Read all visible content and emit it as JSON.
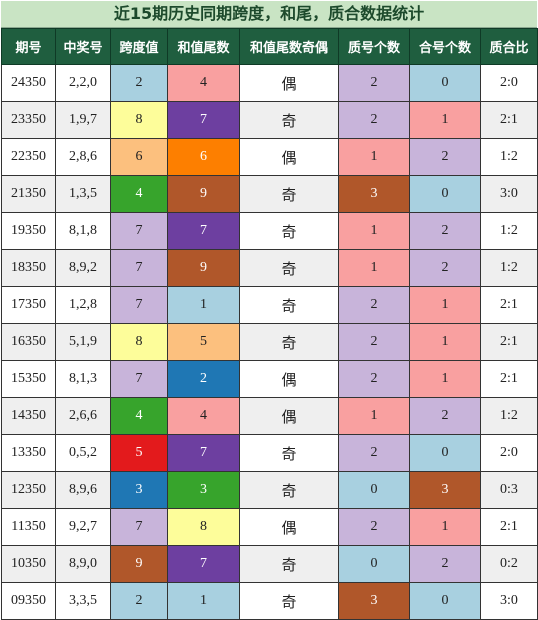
{
  "title": "近15期历史同期跨度，和尾，质合数据统计",
  "headers": [
    "期号",
    "中奖号",
    "跨度值",
    "和值尾数",
    "和值尾数奇偶",
    "质号个数",
    "合号个数",
    "质合比"
  ],
  "colors": {
    "light_blue": "#a8d0e0",
    "pink": "#f9a0a0",
    "lavender": "#c8b4da",
    "yellow": "#fdfd9a",
    "peach": "#fcc07e",
    "orange": "#fd7f00",
    "green": "#37a42c",
    "purple": "#6d3fa0",
    "brown": "#b0572a",
    "blue": "#1f77b4",
    "red": "#e31a1c"
  },
  "rows": [
    {
      "period": "24350",
      "numbers": "2,2,0",
      "span": "2",
      "span_color": "light_blue",
      "tail": "4",
      "tail_color": "pink",
      "parity": "偶",
      "prime": "2",
      "prime_color": "lavender",
      "composite": "0",
      "composite_color": "light_blue",
      "ratio": "2:0"
    },
    {
      "period": "23350",
      "numbers": "1,9,7",
      "span": "8",
      "span_color": "yellow",
      "tail": "7",
      "tail_color": "purple",
      "parity": "奇",
      "prime": "2",
      "prime_color": "lavender",
      "composite": "1",
      "composite_color": "pink",
      "ratio": "2:1"
    },
    {
      "period": "22350",
      "numbers": "2,8,6",
      "span": "6",
      "span_color": "peach",
      "tail": "6",
      "tail_color": "orange",
      "parity": "偶",
      "prime": "1",
      "prime_color": "pink",
      "composite": "2",
      "composite_color": "lavender",
      "ratio": "1:2"
    },
    {
      "period": "21350",
      "numbers": "1,3,5",
      "span": "4",
      "span_color": "green",
      "tail": "9",
      "tail_color": "brown",
      "parity": "奇",
      "prime": "3",
      "prime_color": "brown",
      "composite": "0",
      "composite_color": "light_blue",
      "ratio": "3:0"
    },
    {
      "period": "19350",
      "numbers": "8,1,8",
      "span": "7",
      "span_color": "lavender",
      "tail": "7",
      "tail_color": "purple",
      "parity": "奇",
      "prime": "1",
      "prime_color": "pink",
      "composite": "2",
      "composite_color": "lavender",
      "ratio": "1:2"
    },
    {
      "period": "18350",
      "numbers": "8,9,2",
      "span": "7",
      "span_color": "lavender",
      "tail": "9",
      "tail_color": "brown",
      "parity": "奇",
      "prime": "1",
      "prime_color": "pink",
      "composite": "2",
      "composite_color": "lavender",
      "ratio": "1:2"
    },
    {
      "period": "17350",
      "numbers": "1,2,8",
      "span": "7",
      "span_color": "lavender",
      "tail": "1",
      "tail_color": "light_blue",
      "parity": "奇",
      "prime": "2",
      "prime_color": "lavender",
      "composite": "1",
      "composite_color": "pink",
      "ratio": "2:1"
    },
    {
      "period": "16350",
      "numbers": "5,1,9",
      "span": "8",
      "span_color": "yellow",
      "tail": "5",
      "tail_color": "peach",
      "parity": "奇",
      "prime": "2",
      "prime_color": "lavender",
      "composite": "1",
      "composite_color": "pink",
      "ratio": "2:1"
    },
    {
      "period": "15350",
      "numbers": "8,1,3",
      "span": "7",
      "span_color": "lavender",
      "tail": "2",
      "tail_color": "blue",
      "parity": "偶",
      "prime": "2",
      "prime_color": "lavender",
      "composite": "1",
      "composite_color": "pink",
      "ratio": "2:1"
    },
    {
      "period": "14350",
      "numbers": "2,6,6",
      "span": "4",
      "span_color": "green",
      "tail": "4",
      "tail_color": "pink",
      "parity": "偶",
      "prime": "1",
      "prime_color": "pink",
      "composite": "2",
      "composite_color": "lavender",
      "ratio": "1:2"
    },
    {
      "period": "13350",
      "numbers": "0,5,2",
      "span": "5",
      "span_color": "red",
      "tail": "7",
      "tail_color": "purple",
      "parity": "奇",
      "prime": "2",
      "prime_color": "lavender",
      "composite": "0",
      "composite_color": "light_blue",
      "ratio": "2:0"
    },
    {
      "period": "12350",
      "numbers": "8,9,6",
      "span": "3",
      "span_color": "blue",
      "tail": "3",
      "tail_color": "green",
      "parity": "奇",
      "prime": "0",
      "prime_color": "light_blue",
      "composite": "3",
      "composite_color": "brown",
      "ratio": "0:3"
    },
    {
      "period": "11350",
      "numbers": "9,2,7",
      "span": "7",
      "span_color": "lavender",
      "tail": "8",
      "tail_color": "yellow",
      "parity": "偶",
      "prime": "2",
      "prime_color": "lavender",
      "composite": "1",
      "composite_color": "pink",
      "ratio": "2:1"
    },
    {
      "period": "10350",
      "numbers": "8,9,0",
      "span": "9",
      "span_color": "brown",
      "tail": "7",
      "tail_color": "purple",
      "parity": "奇",
      "prime": "0",
      "prime_color": "light_blue",
      "composite": "2",
      "composite_color": "lavender",
      "ratio": "0:2"
    },
    {
      "period": "09350",
      "numbers": "3,3,5",
      "span": "2",
      "span_color": "light_blue",
      "tail": "1",
      "tail_color": "light_blue",
      "parity": "奇",
      "prime": "3",
      "prime_color": "brown",
      "composite": "0",
      "composite_color": "light_blue",
      "ratio": "3:0"
    }
  ]
}
